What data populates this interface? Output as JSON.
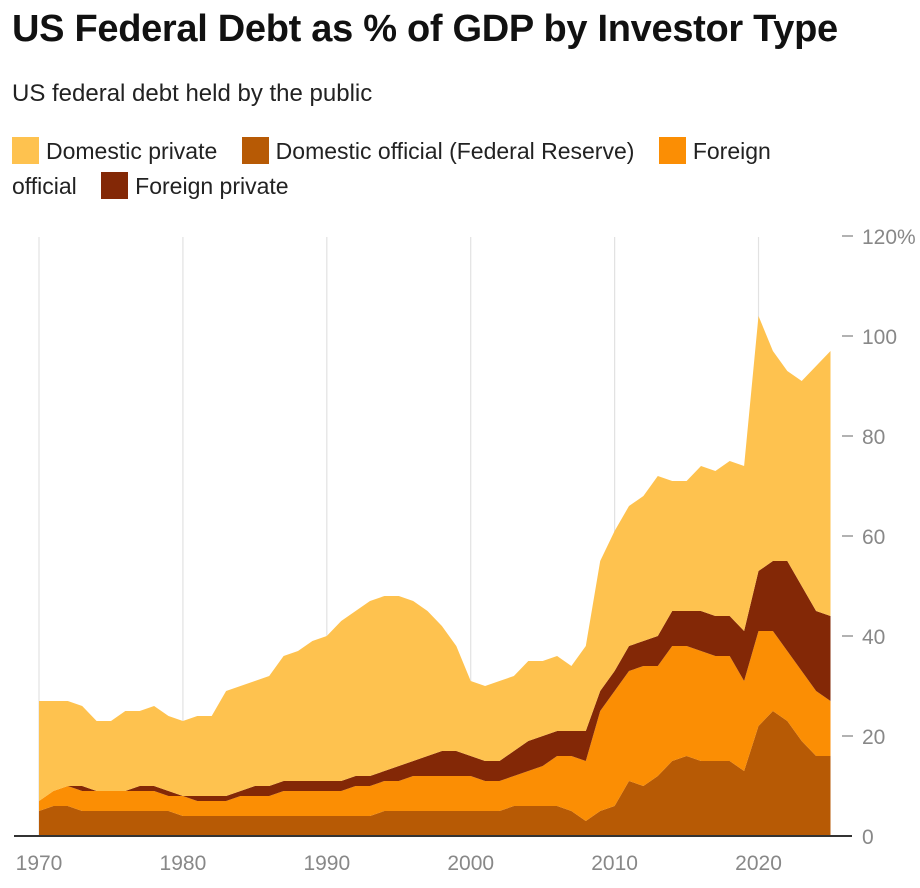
{
  "title": "US Federal Debt as % of GDP by Investor Type",
  "subtitle": "US federal debt held by the public",
  "colors": {
    "domestic_private": "#fec24f",
    "domestic_official": "#b75a05",
    "foreign_official": "#fb8e04",
    "foreign_private": "#832806",
    "gridline": "#e2e2e2",
    "axis": "#333333",
    "tick_text": "#888888"
  },
  "legend": [
    {
      "label": "Domestic private",
      "color": "#fec24f"
    },
    {
      "label": "Domestic official (Federal Reserve)",
      "color": "#b75a05"
    },
    {
      "label": "Foreign official",
      "color": "#fb8e04"
    },
    {
      "label": "Foreign private",
      "color": "#832806"
    }
  ],
  "chart_data": {
    "type": "area",
    "stacked": true,
    "title": "US Federal Debt as % of GDP by Investor Type",
    "subtitle": "US federal debt held by the public",
    "xlabel": "",
    "ylabel": "",
    "xlim": [
      1970,
      2025
    ],
    "ylim": [
      0,
      120
    ],
    "x_ticks": [
      1970,
      1980,
      1990,
      2000,
      2010,
      2020
    ],
    "y_ticks": [
      0,
      20,
      40,
      60,
      80,
      100,
      120
    ],
    "y_tick_labels": [
      "0",
      "20",
      "40",
      "60",
      "80",
      "100",
      "120%"
    ],
    "y_axis_position": "right",
    "legend_position": "top",
    "x": [
      1970,
      1971,
      1972,
      1973,
      1974,
      1975,
      1976,
      1977,
      1978,
      1979,
      1980,
      1981,
      1982,
      1983,
      1984,
      1985,
      1986,
      1987,
      1988,
      1989,
      1990,
      1991,
      1992,
      1993,
      1994,
      1995,
      1996,
      1997,
      1998,
      1999,
      2000,
      2001,
      2002,
      2003,
      2004,
      2005,
      2006,
      2007,
      2008,
      2009,
      2010,
      2011,
      2012,
      2013,
      2014,
      2015,
      2016,
      2017,
      2018,
      2019,
      2020,
      2021,
      2022,
      2023,
      2024,
      2025
    ],
    "series": [
      {
        "name": "Domestic official (Federal Reserve)",
        "values": [
          5,
          6,
          6,
          5,
          5,
          5,
          5,
          5,
          5,
          5,
          4,
          4,
          4,
          4,
          4,
          4,
          4,
          4,
          4,
          4,
          4,
          4,
          4,
          4,
          5,
          5,
          5,
          5,
          5,
          5,
          5,
          5,
          5,
          6,
          6,
          6,
          6,
          5,
          3,
          5,
          6,
          11,
          10,
          12,
          15,
          16,
          15,
          15,
          15,
          13,
          22,
          25,
          23,
          19,
          16,
          16
        ]
      },
      {
        "name": "Foreign official",
        "values": [
          2,
          3,
          4,
          4,
          4,
          4,
          4,
          4,
          4,
          3,
          4,
          3,
          3,
          3,
          4,
          4,
          4,
          5,
          5,
          5,
          5,
          5,
          6,
          6,
          6,
          6,
          7,
          7,
          7,
          7,
          7,
          6,
          6,
          6,
          7,
          8,
          10,
          11,
          12,
          20,
          23,
          22,
          24,
          22,
          23,
          22,
          22,
          21,
          21,
          18,
          19,
          16,
          14,
          14,
          13,
          11
        ]
      },
      {
        "name": "Foreign private",
        "values": [
          0,
          0,
          0,
          1,
          0,
          0,
          0,
          1,
          1,
          1,
          0,
          1,
          1,
          1,
          1,
          2,
          2,
          2,
          2,
          2,
          2,
          2,
          2,
          2,
          2,
          3,
          3,
          4,
          5,
          5,
          4,
          4,
          4,
          5,
          6,
          6,
          5,
          5,
          6,
          4,
          4,
          5,
          5,
          6,
          7,
          7,
          8,
          8,
          8,
          10,
          12,
          14,
          18,
          17,
          16,
          17
        ]
      },
      {
        "name": "Domestic private",
        "values": [
          20,
          18,
          17,
          16,
          14,
          14,
          16,
          15,
          16,
          15,
          15,
          16,
          16,
          21,
          21,
          21,
          22,
          25,
          26,
          28,
          29,
          32,
          33,
          35,
          35,
          34,
          32,
          29,
          25,
          21,
          15,
          15,
          16,
          15,
          16,
          15,
          15,
          13,
          17,
          26,
          28,
          28,
          29,
          32,
          26,
          26,
          29,
          29,
          31,
          33,
          51,
          42,
          38,
          41,
          49,
          53
        ]
      }
    ]
  }
}
